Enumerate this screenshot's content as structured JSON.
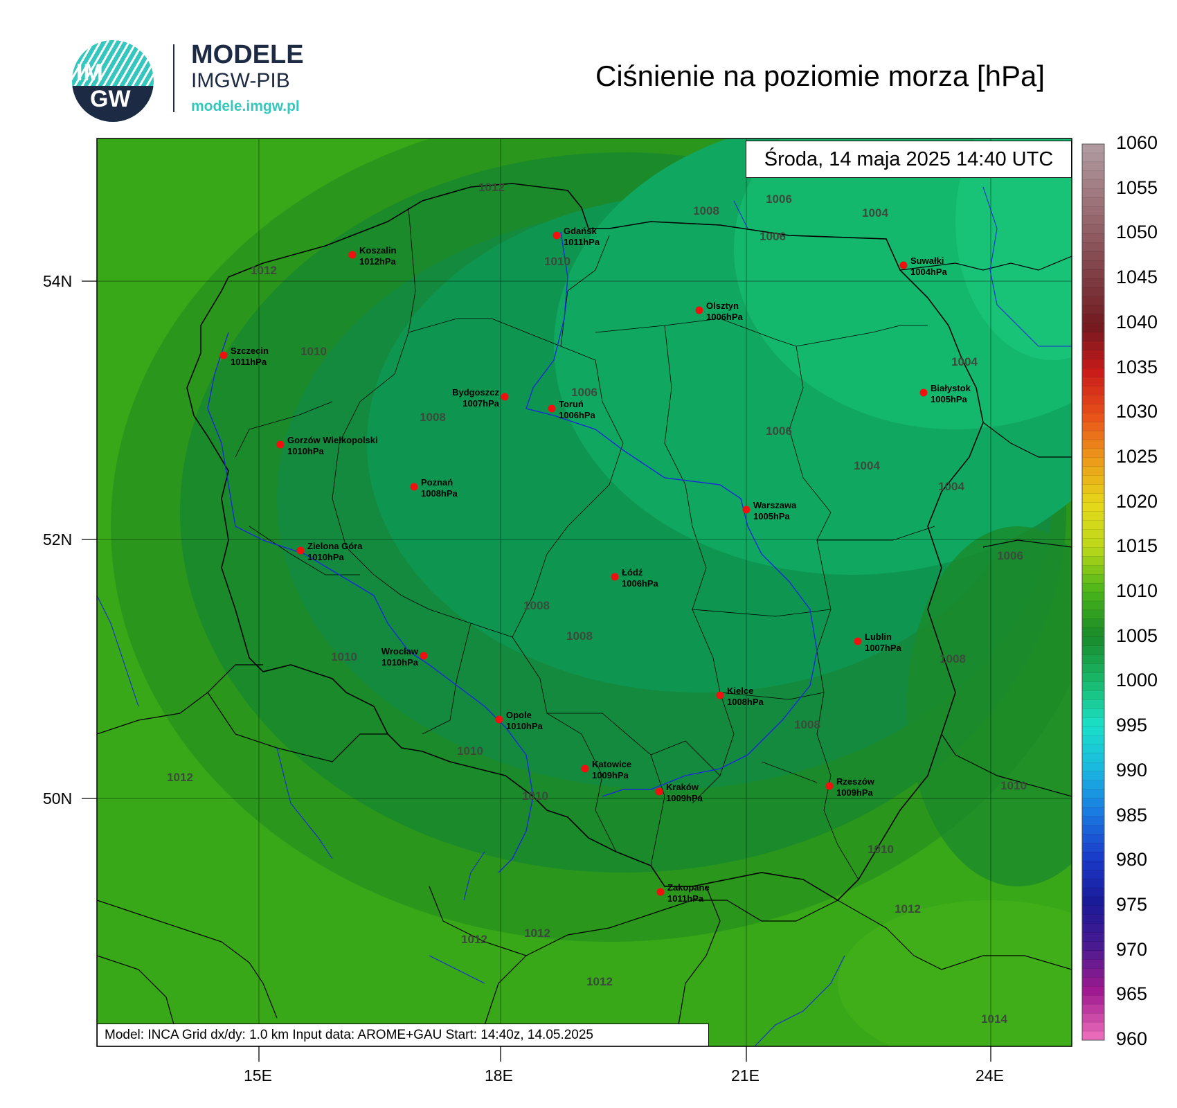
{
  "logo": {
    "circle_text_top": "IM",
    "circle_text_bottom": "GW",
    "line1": "MODELE",
    "line2": "IMGW-PIB",
    "line3": "modele.imgw.pl"
  },
  "title": "Ciśnienie na poziomie morza [hPa]",
  "date_label": "Środa, 14 maja 2025 14:40 UTC",
  "footer": "Model: INCA   Grid dx/dy: 1.0 km   Input data: AROME+GAU   Start: 14:40z, 14.05.2025",
  "lat_labels": [
    "54N",
    "52N",
    "50N"
  ],
  "lon_labels": [
    "15E",
    "18E",
    "21E",
    "24E"
  ],
  "colorbar": {
    "labels": [
      "1060",
      "1055",
      "1050",
      "1045",
      "1040",
      "1035",
      "1030",
      "1025",
      "1020",
      "1015",
      "1010",
      "1005",
      "1000",
      "995",
      "990",
      "985",
      "980",
      "975",
      "970",
      "965",
      "960"
    ],
    "colors": [
      "#b09aa0",
      "#a07a80",
      "#8e5a60",
      "#7c3a40",
      "#741a20",
      "#c81a1a",
      "#e8501a",
      "#ec9a1a",
      "#e6d81a",
      "#bcd81a",
      "#48b41a",
      "#1a8a2a",
      "#1ab86a",
      "#1ae0c8",
      "#1ab8e0",
      "#1a78e0",
      "#1a3ac8",
      "#1a1a98",
      "#4a1a90",
      "#a01a90",
      "#e86ab8"
    ]
  },
  "cities": [
    {
      "name": "Gdańsk",
      "value": "1011hPa"
    },
    {
      "name": "Koszalin",
      "value": "1012hPa"
    },
    {
      "name": "Suwałki",
      "value": "1004hPa"
    },
    {
      "name": "Olsztyn",
      "value": "1006hPa"
    },
    {
      "name": "Szczecin",
      "value": "1011hPa"
    },
    {
      "name": "Białystok",
      "value": "1005hPa"
    },
    {
      "name": "Bydgoszcz",
      "value": "1007hPa"
    },
    {
      "name": "Toruń",
      "value": "1006hPa"
    },
    {
      "name": "Gorzów Wielkopolski",
      "value": "1010hPa"
    },
    {
      "name": "Poznań",
      "value": "1008hPa"
    },
    {
      "name": "Warszawa",
      "value": "1005hPa"
    },
    {
      "name": "Zielona Góra",
      "value": "1010hPa"
    },
    {
      "name": "Łódź",
      "value": "1006hPa"
    },
    {
      "name": "Lublin",
      "value": "1007hPa"
    },
    {
      "name": "Wrocław",
      "value": "1010hPa"
    },
    {
      "name": "Kielce",
      "value": "1008hPa"
    },
    {
      "name": "Opole",
      "value": "1010hPa"
    },
    {
      "name": "Katowice",
      "value": "1009hPa"
    },
    {
      "name": "Kraków",
      "value": "1009hPa"
    },
    {
      "name": "Rzeszów",
      "value": "1009hPa"
    },
    {
      "name": "Zakopane",
      "value": "1011hPa"
    }
  ],
  "isobar_labels": [
    "1012",
    "1008",
    "1006",
    "1004",
    "1006",
    "1012",
    "1010",
    "1010",
    "1004",
    "1006",
    "1008",
    "1006",
    "1004",
    "1004",
    "1006",
    "1008",
    "1008",
    "1010",
    "1008",
    "1008",
    "1010",
    "1010",
    "1012",
    "1010",
    "1010",
    "1012",
    "1012",
    "1012",
    "1012",
    "1014"
  ]
}
